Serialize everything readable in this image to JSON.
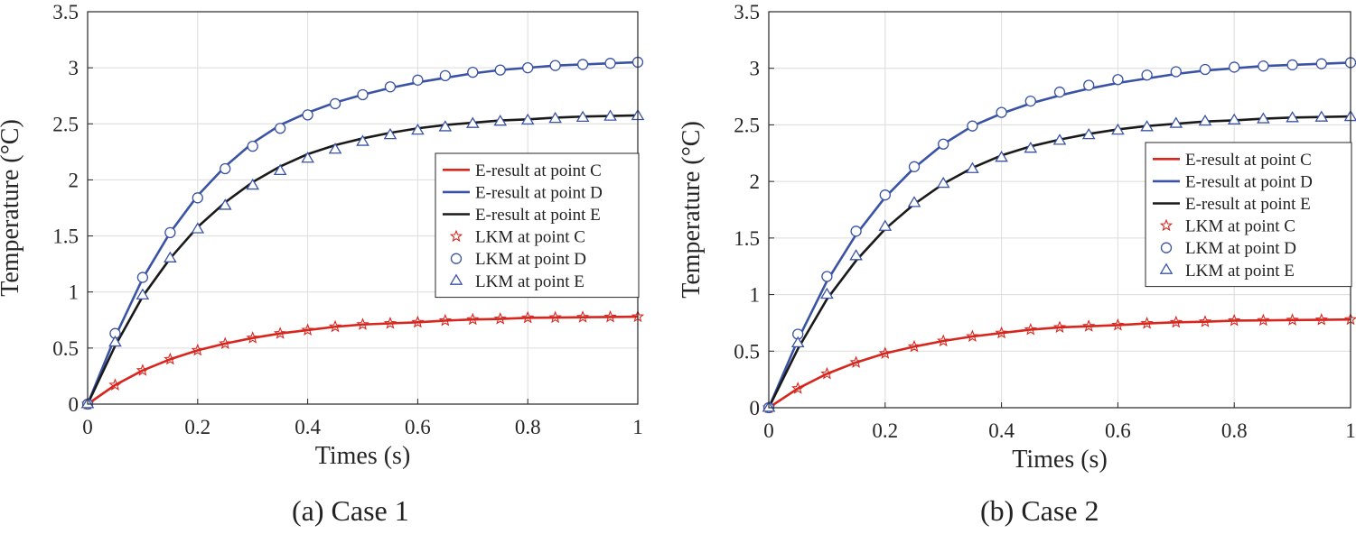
{
  "chart_data": [
    {
      "type": "line",
      "caption": "(a) Case 1",
      "xlabel": "Times (s)",
      "ylabel": "Temperature (°C)",
      "xlim": [
        0,
        1
      ],
      "ylim": [
        0,
        3.5
      ],
      "xticks": [
        "0",
        "0.2",
        "0.4",
        "0.6",
        "0.8",
        "1"
      ],
      "yticks": [
        "0",
        "0.5",
        "1",
        "1.5",
        "2",
        "2.5",
        "3",
        "3.5"
      ],
      "grid": true,
      "legend_position": "right",
      "x": [
        0,
        0.05,
        0.1,
        0.15,
        0.2,
        0.25,
        0.3,
        0.35,
        0.4,
        0.45,
        0.5,
        0.55,
        0.6,
        0.65,
        0.7,
        0.75,
        0.8,
        0.85,
        0.9,
        0.95,
        1.0
      ],
      "series": [
        {
          "name": "E-result at point C",
          "kind": "line",
          "color": "#d7261e",
          "values": [
            0,
            0.17,
            0.3,
            0.4,
            0.48,
            0.54,
            0.59,
            0.63,
            0.66,
            0.69,
            0.71,
            0.72,
            0.73,
            0.745,
            0.755,
            0.76,
            0.77,
            0.772,
            0.775,
            0.777,
            0.78
          ]
        },
        {
          "name": "E-result at point D",
          "kind": "line",
          "color": "#3a53a4",
          "values": [
            0,
            0.6,
            1.12,
            1.53,
            1.86,
            2.12,
            2.33,
            2.49,
            2.6,
            2.69,
            2.76,
            2.82,
            2.87,
            2.91,
            2.95,
            2.98,
            3.0,
            3.02,
            3.03,
            3.04,
            3.05
          ]
        },
        {
          "name": "E-result at point E",
          "kind": "line",
          "color": "#1a1a1a",
          "values": [
            0,
            0.52,
            0.96,
            1.3,
            1.58,
            1.8,
            1.98,
            2.12,
            2.23,
            2.31,
            2.37,
            2.42,
            2.46,
            2.49,
            2.51,
            2.53,
            2.54,
            2.555,
            2.565,
            2.57,
            2.575
          ]
        },
        {
          "name": "LKM at point C",
          "kind": "marker",
          "marker": "star",
          "color": "#d7261e",
          "values": [
            0,
            0.17,
            0.3,
            0.4,
            0.48,
            0.54,
            0.59,
            0.63,
            0.66,
            0.69,
            0.71,
            0.72,
            0.73,
            0.745,
            0.755,
            0.76,
            0.77,
            0.772,
            0.775,
            0.777,
            0.78
          ]
        },
        {
          "name": "LKM at point D",
          "kind": "marker",
          "marker": "circle",
          "color": "#3a53a4",
          "values": [
            0,
            0.63,
            1.13,
            1.53,
            1.84,
            2.1,
            2.3,
            2.46,
            2.58,
            2.68,
            2.76,
            2.83,
            2.89,
            2.93,
            2.96,
            2.98,
            3.0,
            3.02,
            3.03,
            3.04,
            3.05
          ]
        },
        {
          "name": "LKM at point E",
          "kind": "marker",
          "marker": "triangle",
          "color": "#3a53a4",
          "values": [
            0,
            0.55,
            0.97,
            1.3,
            1.56,
            1.77,
            1.95,
            2.08,
            2.19,
            2.27,
            2.34,
            2.4,
            2.44,
            2.47,
            2.5,
            2.52,
            2.53,
            2.545,
            2.555,
            2.565,
            2.57
          ]
        }
      ]
    },
    {
      "type": "line",
      "caption": "(b) Case 2",
      "xlabel": "Times (s)",
      "ylabel": "Temperature (°C)",
      "xlim": [
        0,
        1
      ],
      "ylim": [
        0,
        3.5
      ],
      "xticks": [
        "0",
        "0.2",
        "0.4",
        "0.6",
        "0.8",
        "1"
      ],
      "yticks": [
        "0",
        "0.5",
        "1",
        "1.5",
        "2",
        "2.5",
        "3",
        "3.5"
      ],
      "grid": true,
      "legend_position": "right",
      "x": [
        0,
        0.05,
        0.1,
        0.15,
        0.2,
        0.25,
        0.3,
        0.35,
        0.4,
        0.45,
        0.5,
        0.55,
        0.6,
        0.65,
        0.7,
        0.75,
        0.8,
        0.85,
        0.9,
        0.95,
        1.0
      ],
      "series": [
        {
          "name": "E-result at point C",
          "kind": "line",
          "color": "#d7261e",
          "values": [
            0,
            0.17,
            0.3,
            0.4,
            0.48,
            0.54,
            0.59,
            0.63,
            0.66,
            0.69,
            0.71,
            0.72,
            0.73,
            0.745,
            0.755,
            0.76,
            0.77,
            0.772,
            0.775,
            0.777,
            0.78
          ]
        },
        {
          "name": "E-result at point D",
          "kind": "line",
          "color": "#3a53a4",
          "values": [
            0,
            0.6,
            1.12,
            1.53,
            1.86,
            2.12,
            2.33,
            2.49,
            2.6,
            2.69,
            2.76,
            2.82,
            2.87,
            2.91,
            2.95,
            2.98,
            3.0,
            3.02,
            3.03,
            3.04,
            3.05
          ]
        },
        {
          "name": "E-result at point E",
          "kind": "line",
          "color": "#1a1a1a",
          "values": [
            0,
            0.52,
            0.96,
            1.3,
            1.58,
            1.8,
            1.98,
            2.12,
            2.23,
            2.31,
            2.37,
            2.42,
            2.46,
            2.49,
            2.51,
            2.53,
            2.54,
            2.555,
            2.565,
            2.57,
            2.575
          ]
        },
        {
          "name": "LKM at point C",
          "kind": "marker",
          "marker": "star",
          "color": "#d7261e",
          "values": [
            0,
            0.17,
            0.3,
            0.4,
            0.48,
            0.54,
            0.59,
            0.63,
            0.66,
            0.69,
            0.71,
            0.72,
            0.73,
            0.745,
            0.755,
            0.76,
            0.77,
            0.772,
            0.775,
            0.777,
            0.78
          ]
        },
        {
          "name": "LKM at point D",
          "kind": "marker",
          "marker": "circle",
          "color": "#3a53a4",
          "values": [
            0,
            0.65,
            1.16,
            1.56,
            1.88,
            2.13,
            2.33,
            2.49,
            2.61,
            2.71,
            2.79,
            2.85,
            2.9,
            2.94,
            2.97,
            2.99,
            3.01,
            3.02,
            3.03,
            3.04,
            3.05
          ]
        },
        {
          "name": "LKM at point E",
          "kind": "marker",
          "marker": "triangle",
          "color": "#3a53a4",
          "values": [
            0,
            0.57,
            1.0,
            1.34,
            1.6,
            1.81,
            1.98,
            2.11,
            2.21,
            2.29,
            2.36,
            2.41,
            2.45,
            2.48,
            2.51,
            2.53,
            2.54,
            2.55,
            2.56,
            2.565,
            2.57
          ]
        }
      ]
    }
  ]
}
